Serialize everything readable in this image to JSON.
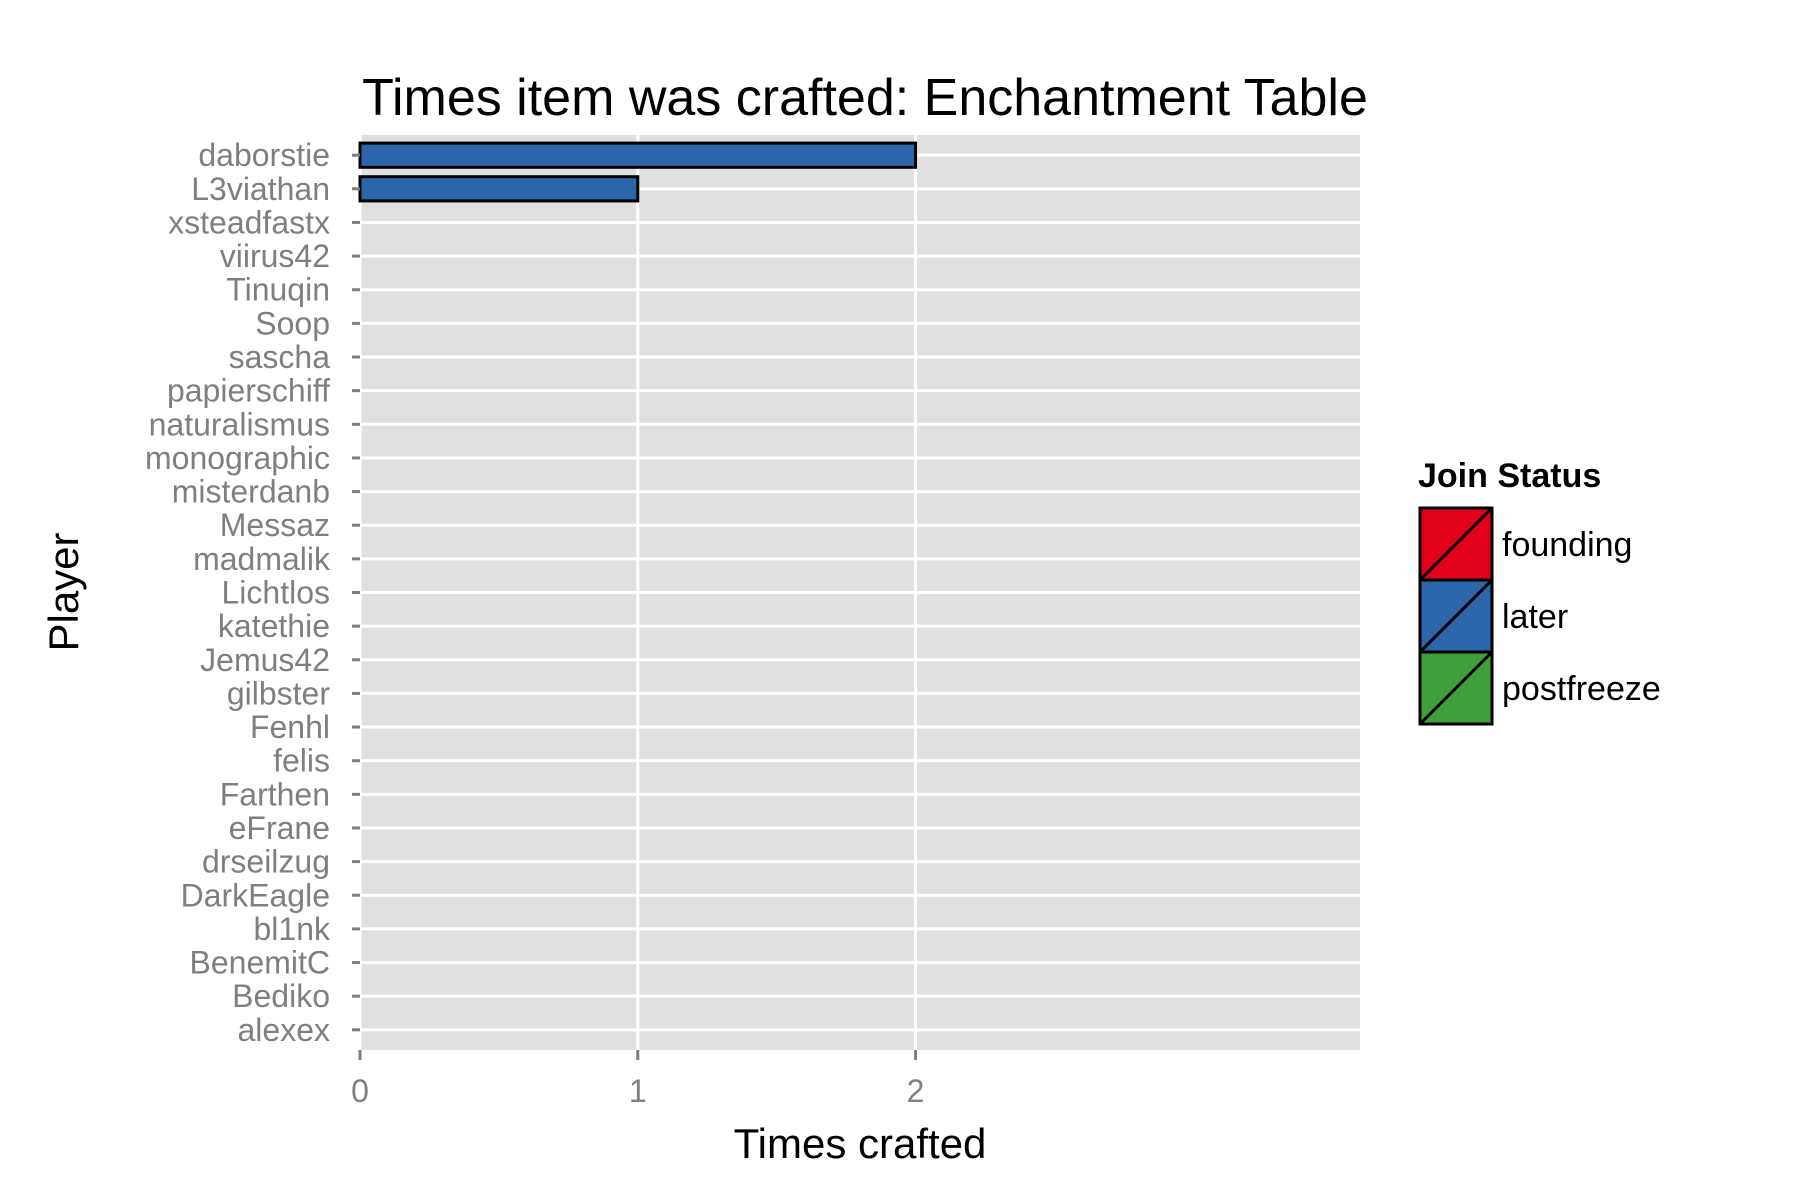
{
  "chart_data": {
    "type": "bar",
    "orientation": "horizontal",
    "title": "Times item was crafted: Enchantment Table",
    "xlabel": "Times crafted",
    "ylabel": "Player",
    "xlim": [
      0,
      3.6
    ],
    "x_ticks": [
      "0",
      "1",
      "2"
    ],
    "grid": true,
    "categories": [
      "daborstie",
      "L3viathan",
      "xsteadfastx",
      "viirus42",
      "Tinuqin",
      "Soop",
      "sascha",
      "papierschiff",
      "naturalismus",
      "monographic",
      "misterdanb",
      "Messaz",
      "madmalik",
      "Lichtlos",
      "katethie",
      "Jemus42",
      "gilbster",
      "Fenhl",
      "felis",
      "Farthen",
      "eFrane",
      "drseilzug",
      "DarkEagle",
      "bl1nk",
      "BenemitC",
      "Bediko",
      "alexex"
    ],
    "values": [
      2,
      1,
      0,
      0,
      0,
      0,
      0,
      0,
      0,
      0,
      0,
      0,
      0,
      0,
      0,
      0,
      0,
      0,
      0,
      0,
      0,
      0,
      0,
      0,
      0,
      0,
      0
    ],
    "status": [
      "later",
      "later",
      "later",
      "later",
      "later",
      "later",
      "later",
      "later",
      "later",
      "later",
      "later",
      "later",
      "later",
      "later",
      "later",
      "later",
      "later",
      "later",
      "later",
      "later",
      "later",
      "later",
      "later",
      "later",
      "later",
      "later",
      "later"
    ],
    "legend": {
      "title": "Join Status",
      "position": "right",
      "entries": [
        {
          "label": "founding",
          "color": "#e0001b"
        },
        {
          "label": "later",
          "color": "#2c66aa"
        },
        {
          "label": "postfreeze",
          "color": "#3f9f3a"
        }
      ]
    },
    "panel_color": "#e0e0e0",
    "grid_color": "#ffffff"
  }
}
